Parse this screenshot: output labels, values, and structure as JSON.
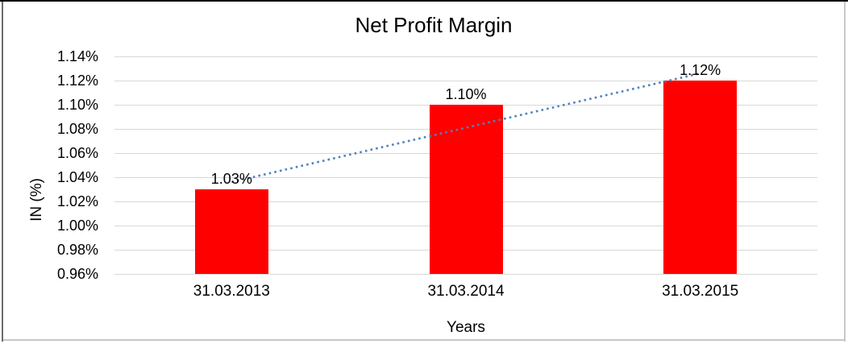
{
  "chart_data": {
    "type": "bar",
    "title": "Net Profit Margin",
    "xlabel": "Years",
    "ylabel": "IN (%)",
    "categories": [
      "31.03.2013",
      "31.03.2014",
      "31.03.2015"
    ],
    "values": [
      1.03,
      1.1,
      1.12
    ],
    "data_labels": [
      "1.03%",
      "1.10%",
      "1.12%"
    ],
    "ylim": [
      0.96,
      1.14
    ],
    "y_ticks": [
      {
        "value": 1.14,
        "label": "1.14%"
      },
      {
        "value": 1.12,
        "label": "1.12%"
      },
      {
        "value": 1.1,
        "label": "1.10%"
      },
      {
        "value": 1.08,
        "label": "1.08%"
      },
      {
        "value": 1.06,
        "label": "1.06%"
      },
      {
        "value": 1.04,
        "label": "1.04%"
      },
      {
        "value": 1.02,
        "label": "1.02%"
      },
      {
        "value": 1.0,
        "label": "1.00%"
      },
      {
        "value": 0.98,
        "label": "0.98%"
      },
      {
        "value": 0.96,
        "label": "0.96%"
      }
    ],
    "grid": true,
    "legend": "none",
    "bar_color": "#FF0000",
    "gridline_color": "#D9D9D9",
    "text_color": "#000000",
    "trendline": {
      "type": "linear",
      "style": "dotted",
      "color": "#4F81BD",
      "start": {
        "category_index": 0,
        "value": 1.036
      },
      "end": {
        "category_index": 2,
        "value": 1.126
      }
    }
  }
}
